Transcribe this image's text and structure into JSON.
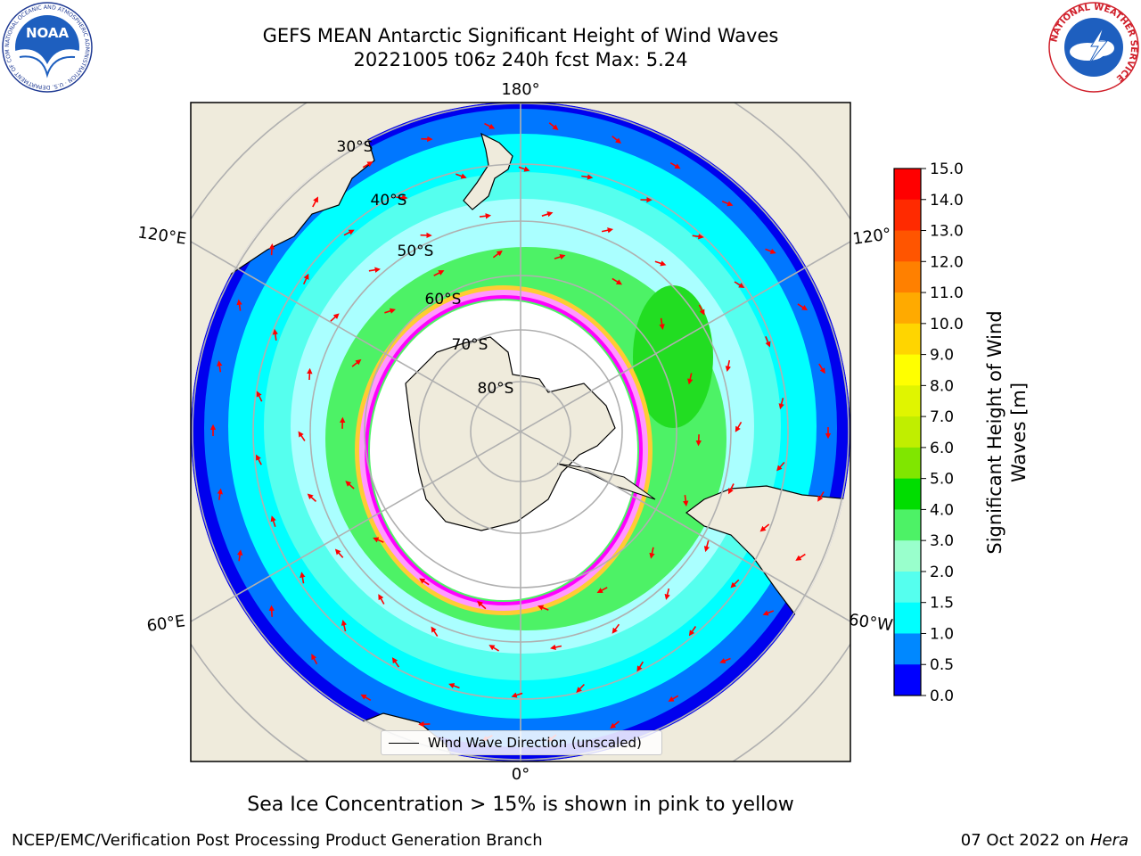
{
  "title": {
    "line1": "GEFS MEAN Antarctic Significant Height of Wind Waves",
    "line2": "20221005 t06z 240h fcst   Max: 5.24"
  },
  "logos": {
    "left": {
      "text": "NOAA",
      "ring_text": "NATIONAL OCEANIC AND ATMOSPHERIC ADMINISTRATION · U.S. DEPARTMENT OF COMMERCE"
    },
    "right": {
      "ring_text": "NATIONAL WEATHER SERVICE"
    }
  },
  "map": {
    "projection": "south-polar-stereographic",
    "lon_labels": [
      {
        "text": "180°",
        "id": "lon-180"
      },
      {
        "text": "120°E",
        "id": "lon-120e"
      },
      {
        "text": "120°",
        "id": "lon-120w"
      },
      {
        "text": "60°E",
        "id": "lon-60e"
      },
      {
        "text": "60°W",
        "id": "lon-60w"
      },
      {
        "text": "0°",
        "id": "lon-0"
      }
    ],
    "lat_labels": [
      "30°S",
      "40°S",
      "50°S",
      "60°S",
      "70°S",
      "80°S"
    ],
    "colors": {
      "land": "#efebdc",
      "ice": "#ffffff",
      "ice_edge": [
        "#ff00ff",
        "#ff99ff",
        "#ffcc33"
      ],
      "arrow": "#ff0000",
      "grid": "#b0b0b0"
    },
    "legend_label": "Wind Wave Direction (unscaled)"
  },
  "colorbar": {
    "label_line1": "Significant Height of Wind",
    "label_line2": "Waves [m]",
    "ticks": [
      "15.0",
      "14.0",
      "13.0",
      "12.0",
      "11.0",
      "10.0",
      "9.0",
      "8.0",
      "7.0",
      "6.0",
      "5.0",
      "4.0",
      "3.0",
      "2.0",
      "1.5",
      "1.0",
      "0.5",
      "0.0"
    ],
    "colors": [
      "#ff0000",
      "#ff2a00",
      "#ff5500",
      "#ff8000",
      "#ffaa00",
      "#ffd500",
      "#ffff00",
      "#e0f500",
      "#c0ee00",
      "#80e600",
      "#00dd00",
      "#4df266",
      "#99ffcc",
      "#55ffee",
      "#00ffff",
      "#0088ff",
      "#0000ff"
    ]
  },
  "footer": {
    "note": "Sea Ice Concentration > 15% is shown in pink to yellow",
    "credit_left": "NCEP/EMC/Verification Post Processing Product Generation Branch",
    "credit_right_date": "07 Oct 2022 on ",
    "credit_right_host": "Hera"
  }
}
